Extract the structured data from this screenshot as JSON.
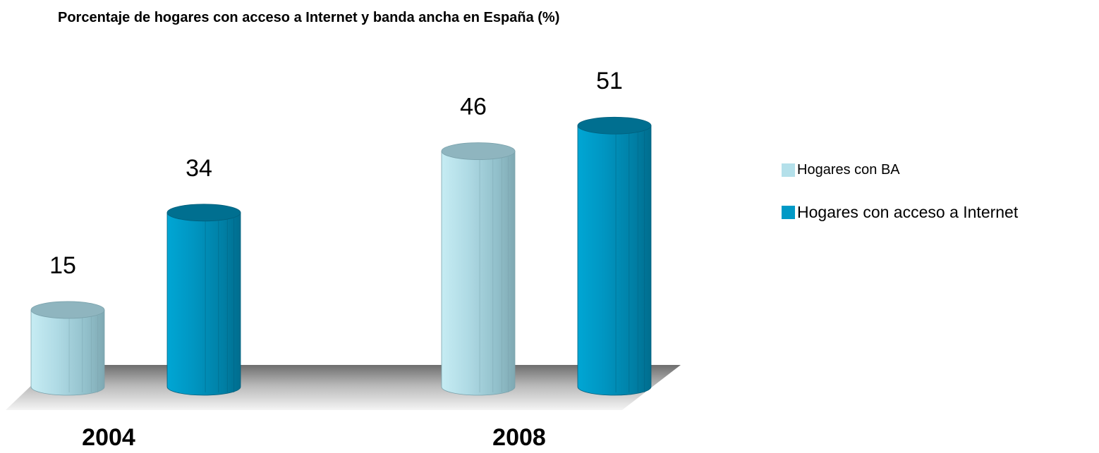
{
  "chart_data": {
    "type": "bar",
    "title": "Porcentaje de hogares con acceso a Internet y banda ancha en España (%)",
    "categories": [
      "2004",
      "2008"
    ],
    "series": [
      {
        "name": "Hogares con BA",
        "values": [
          15,
          46
        ],
        "color": "#b4e0ea"
      },
      {
        "name": "Hogares con acceso a Internet",
        "values": [
          34,
          51
        ],
        "color": "#0099c6"
      }
    ],
    "ylim": [
      0,
      60
    ],
    "grid": false,
    "legend_position": "right",
    "style": "3d-cylinder"
  }
}
